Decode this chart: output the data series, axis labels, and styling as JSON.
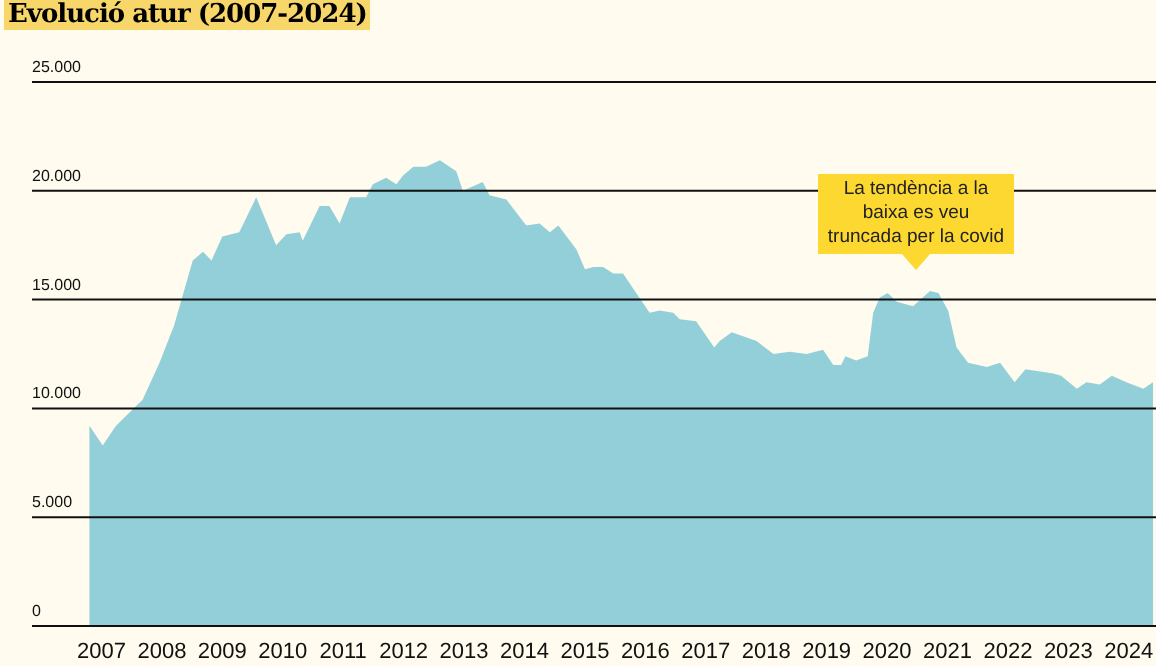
{
  "chart_data": {
    "type": "area",
    "title": "Evolució atur (2007-2024)",
    "x": [
      2006.8,
      2007.02,
      2007.24,
      2007.46,
      2007.68,
      2007.96,
      2008.2,
      2008.51,
      2008.68,
      2008.82,
      2009.0,
      2009.28,
      2009.56,
      2009.89,
      2010.06,
      2010.28,
      2010.33,
      2010.61,
      2010.77,
      2010.94,
      2011.11,
      2011.38,
      2011.49,
      2011.71,
      2011.88,
      2011.99,
      2012.16,
      2012.37,
      2012.6,
      2012.87,
      2012.98,
      2013.31,
      2013.42,
      2013.7,
      2014.03,
      2014.25,
      2014.42,
      2014.56,
      2014.86,
      2015.0,
      2015.14,
      2015.3,
      2015.47,
      2015.63,
      2016.07,
      2016.24,
      2016.46,
      2016.57,
      2016.84,
      2017.14,
      2017.23,
      2017.43,
      2017.84,
      2018.12,
      2018.39,
      2018.67,
      2018.94,
      2019.11,
      2019.24,
      2019.31,
      2019.49,
      2019.68,
      2019.77,
      2019.88,
      2020.01,
      2020.16,
      2020.43,
      2020.71,
      2020.85,
      2021.01,
      2021.15,
      2021.34,
      2021.65,
      2021.87,
      2022.11,
      2022.29,
      2022.75,
      2022.88,
      2023.14,
      2023.3,
      2023.52,
      2023.72,
      2023.96,
      2024.24,
      2024.4
    ],
    "series": [
      {
        "color": "#93cfd9",
        "values": [
          9200,
          8300,
          9200,
          9800,
          10400,
          12100,
          13800,
          16800,
          17200,
          16800,
          17900,
          18100,
          19700,
          17500,
          18000,
          18100,
          17700,
          19300,
          19300,
          18500,
          19700,
          19700,
          20300,
          20600,
          20300,
          20700,
          21100,
          21100,
          21400,
          20900,
          20000,
          20400,
          19800,
          19600,
          18400,
          18500,
          18100,
          18400,
          17300,
          16400,
          16500,
          16500,
          16200,
          16200,
          14400,
          14500,
          14400,
          14100,
          14000,
          12800,
          13100,
          13500,
          13100,
          12500,
          12600,
          12500,
          12700,
          12000,
          12000,
          12400,
          12200,
          12400,
          14400,
          15100,
          15300,
          14900,
          14700,
          15400,
          15300,
          14500,
          12800,
          12100,
          11900,
          12100,
          11200,
          11800,
          11600,
          11500,
          10900,
          11200,
          11100,
          11500,
          11200,
          10900,
          11200
        ]
      }
    ],
    "xlim": [
      2005.85,
      2024.45
    ],
    "xticks": [
      2007,
      2008,
      2009,
      2010,
      2011,
      2012,
      2013,
      2014,
      2015,
      2016,
      2017,
      2018,
      2019,
      2020,
      2021,
      2022,
      2023,
      2024
    ],
    "ylim": [
      0,
      25000
    ],
    "yticks": [
      {
        "value": 0,
        "label": "0"
      },
      {
        "value": 5000,
        "label": "5.000"
      },
      {
        "value": 10000,
        "label": "10.000"
      },
      {
        "value": 15000,
        "label": "15.000"
      },
      {
        "value": 20000,
        "label": "20.000"
      },
      {
        "value": 25000,
        "label": "25.000"
      }
    ],
    "grid": "y",
    "annotations": [
      "La tendència a la baixa es veu truncada per la covid"
    ]
  }
}
